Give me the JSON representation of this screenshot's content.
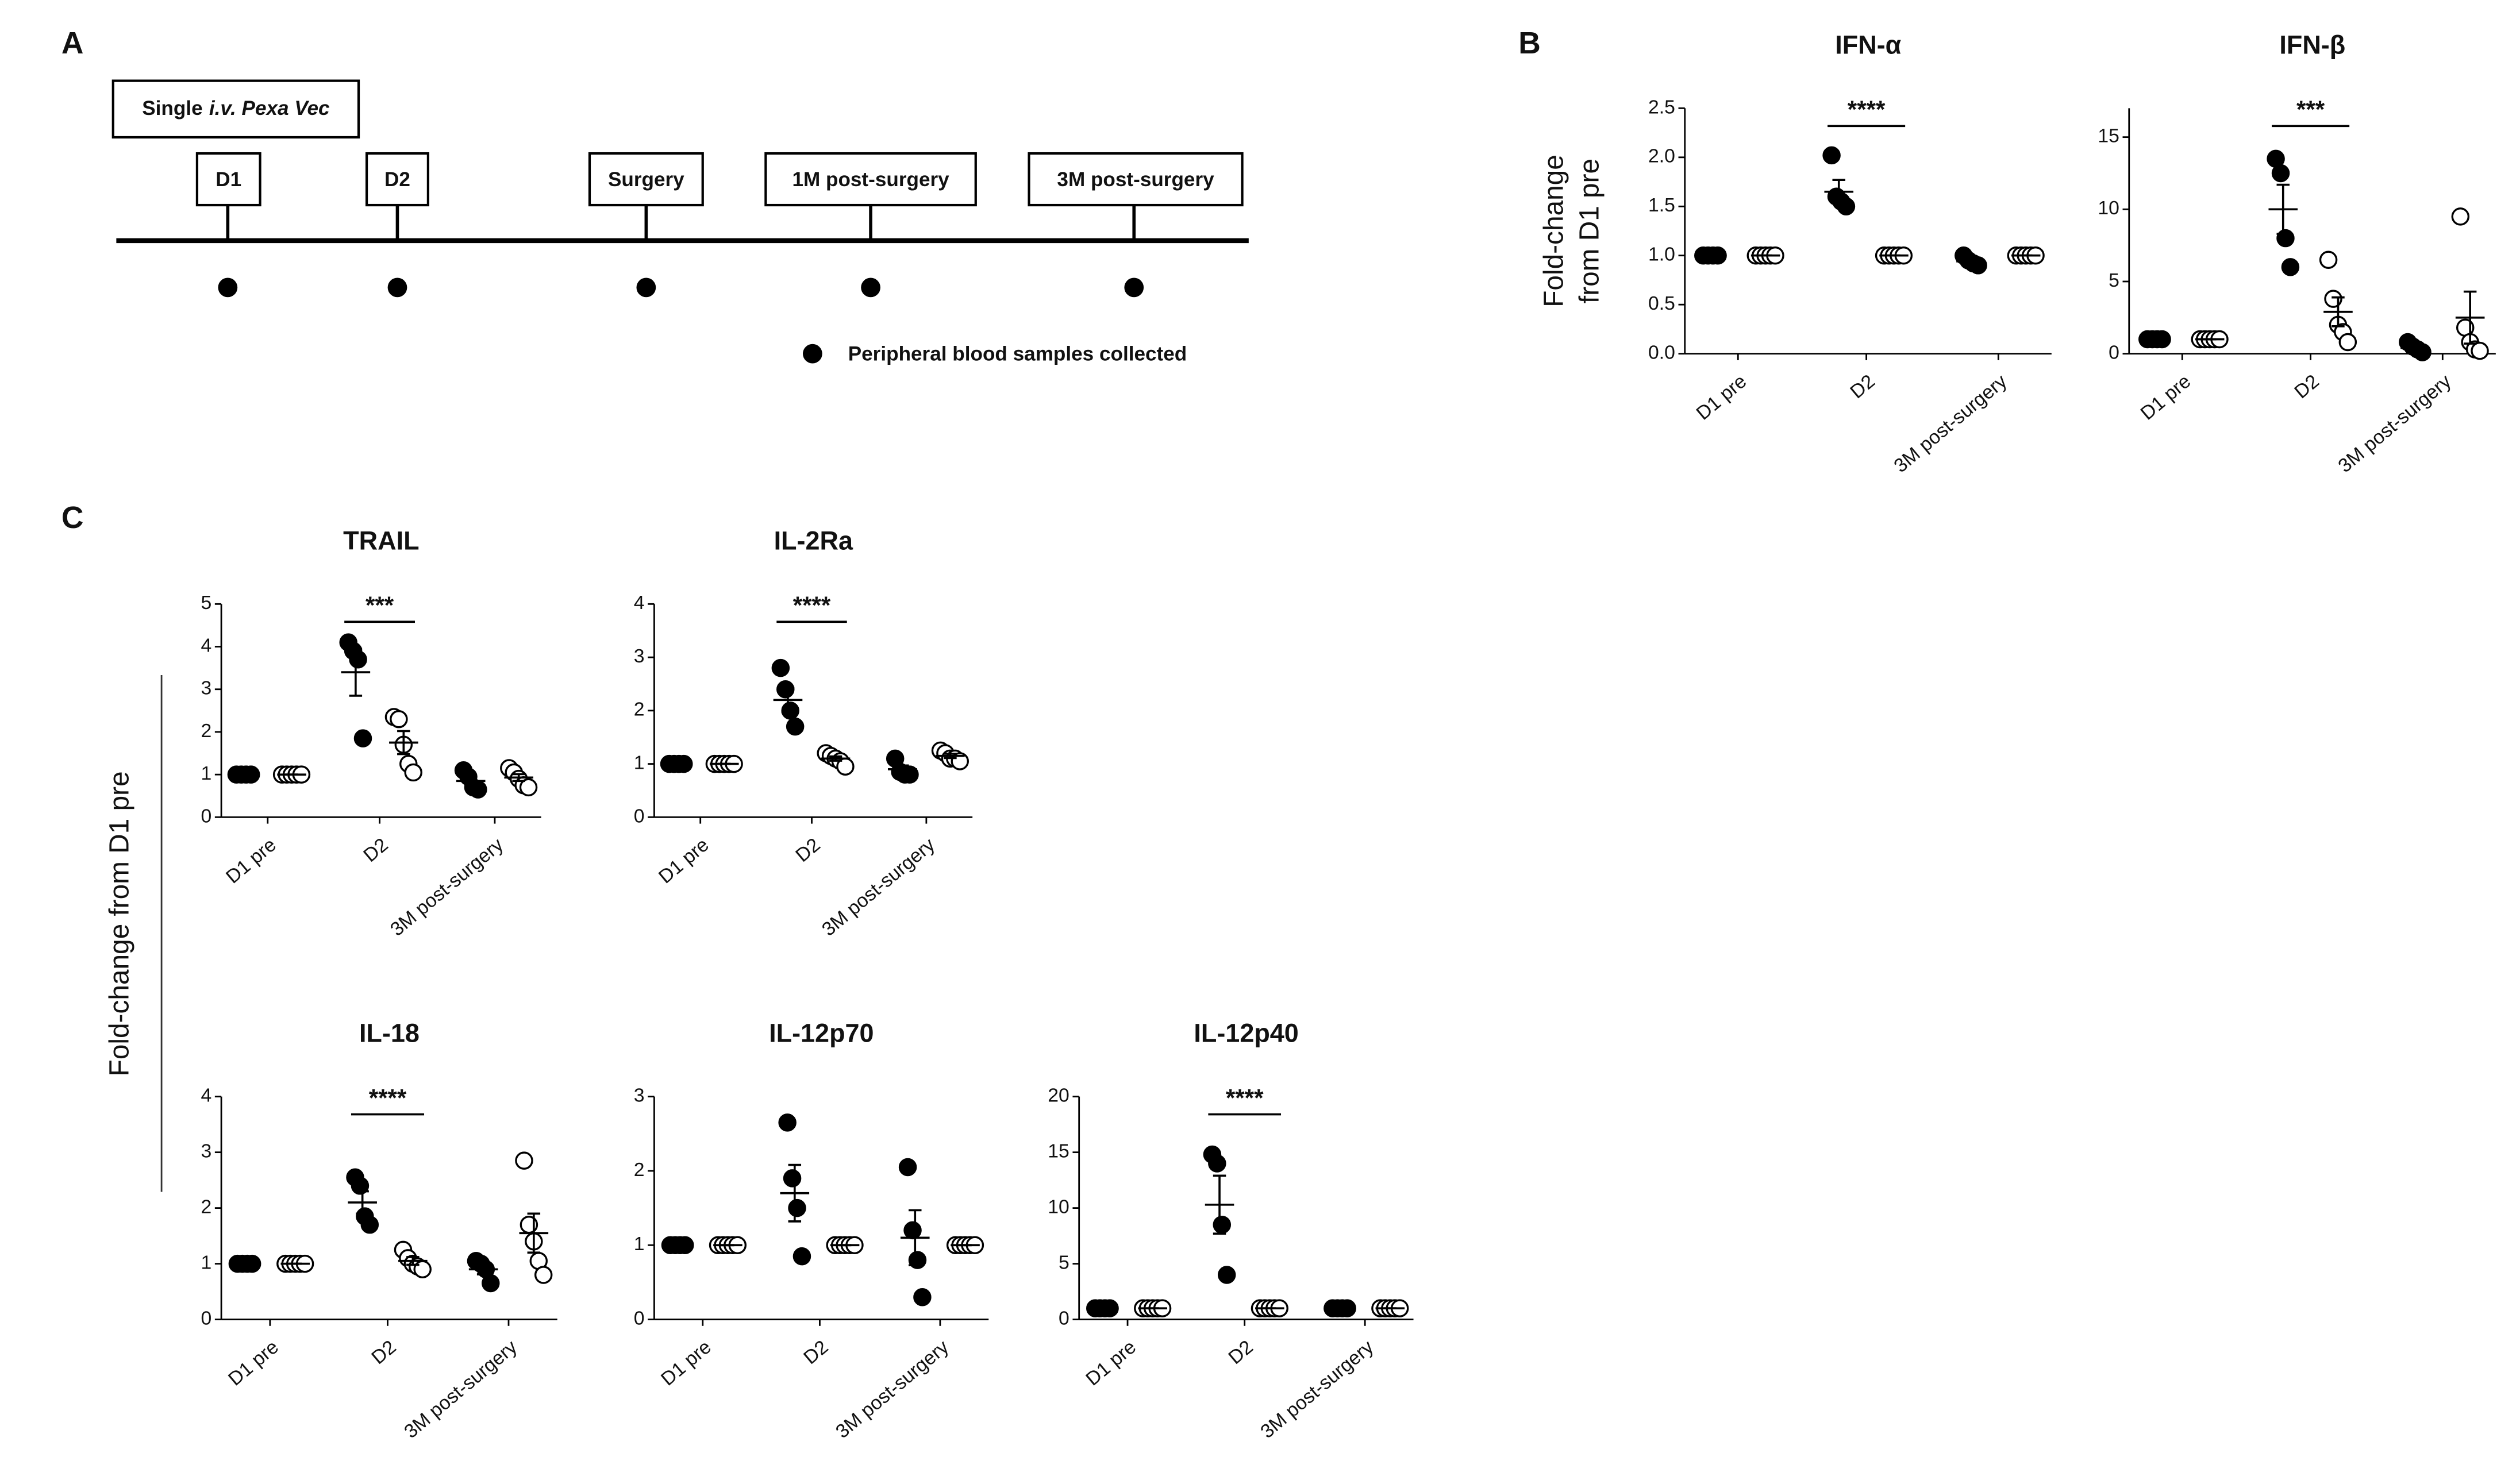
{
  "panels": [
    "A",
    "B",
    "C"
  ],
  "timeline": {
    "intro": [
      "Single",
      "i.v. Pexa Vec"
    ],
    "events": [
      "D1",
      "D2",
      "Surgery",
      "1M post-surgery",
      "3M post-surgery"
    ],
    "legend": "Peripheral blood samples collected"
  },
  "shared_ylabel": "Fold-change from D1 pre",
  "chart_data": [
    {
      "type": "dot",
      "title": "IFN-α",
      "ylabel": [
        "Fold-change",
        "from D1 pre"
      ],
      "categories": [
        "D1 pre",
        "D2",
        "3M post-surgery"
      ],
      "ylim": [
        0,
        2.5
      ],
      "yticks": [
        {
          "value": 0,
          "label": "0.0"
        },
        0.5,
        {
          "value": 1,
          "label": "1.0"
        },
        1.5,
        {
          "value": 2,
          "label": "2.0"
        },
        2.5
      ],
      "significance": {
        "label": "****",
        "category": 1
      },
      "series": [
        {
          "marker": "filled",
          "color": "#000000",
          "values": [
            [
              1,
              1,
              1,
              1
            ],
            [
              2.02,
              1.6,
              1.55,
              1.5
            ],
            [
              1,
              0.95,
              0.92,
              0.9
            ]
          ],
          "mean": [
            1,
            1.65,
            0.94
          ],
          "sem": [
            0,
            0.12,
            0.02
          ]
        },
        {
          "marker": "open",
          "color": "#000000",
          "values": [
            [
              1,
              1,
              1,
              1,
              1
            ],
            [
              1,
              1,
              1,
              1,
              1
            ],
            [
              1,
              1,
              1,
              1,
              1
            ]
          ],
          "mean": [
            1,
            1,
            1
          ],
          "sem": [
            0,
            0,
            0
          ]
        }
      ]
    },
    {
      "type": "dot",
      "title": "IFN-β",
      "categories": [
        "D1 pre",
        "D2",
        "3M post-surgery"
      ],
      "ylim": [
        0,
        17
      ],
      "yticks": [
        0,
        5,
        10,
        15
      ],
      "significance": {
        "label": "***",
        "category": 1
      },
      "series": [
        {
          "marker": "filled",
          "color": "#000000",
          "values": [
            [
              1,
              1,
              1,
              1
            ],
            [
              13.5,
              12.5,
              8,
              6
            ],
            [
              0.8,
              0.5,
              0.3,
              0.1
            ]
          ],
          "mean": [
            1,
            10,
            0.4
          ],
          "sem": [
            0,
            1.7,
            0.15
          ]
        },
        {
          "marker": "open",
          "color": "#000000",
          "values": [
            [
              1,
              1,
              1,
              1,
              1
            ],
            [
              6.5,
              3.8,
              2,
              1.5,
              0.8
            ],
            [
              9.5,
              1.8,
              0.8,
              0.3,
              0.2
            ]
          ],
          "mean": [
            1,
            2.9,
            2.5
          ],
          "sem": [
            0,
            1,
            1.8
          ]
        }
      ]
    },
    {
      "type": "dot",
      "title": "TRAIL",
      "categories": [
        "D1 pre",
        "D2",
        "3M post-surgery"
      ],
      "ylim": [
        0,
        5
      ],
      "yticks": [
        0,
        1,
        2,
        3,
        4,
        5
      ],
      "significance": {
        "label": "***",
        "category": 1
      },
      "series": [
        {
          "marker": "filled",
          "color": "#000000",
          "values": [
            [
              1,
              1,
              1,
              1
            ],
            [
              4.1,
              3.9,
              3.7,
              1.85
            ],
            [
              1.1,
              0.95,
              0.7,
              0.65
            ]
          ],
          "mean": [
            1,
            3.4,
            0.85
          ],
          "sem": [
            0,
            0.55,
            0.1
          ]
        },
        {
          "marker": "open",
          "color": "#000000",
          "values": [
            [
              1,
              1,
              1,
              1,
              1
            ],
            [
              2.35,
              2.3,
              1.7,
              1.25,
              1.05
            ],
            [
              1.15,
              1.05,
              0.9,
              0.75,
              0.7
            ]
          ],
          "mean": [
            1,
            1.75,
            0.93
          ],
          "sem": [
            0,
            0.27,
            0.08
          ]
        }
      ]
    },
    {
      "type": "dot",
      "title": "IL-2Ra",
      "categories": [
        "D1 pre",
        "D2",
        "3M post-surgery"
      ],
      "ylim": [
        0,
        4
      ],
      "yticks": [
        0,
        1,
        2,
        3,
        4
      ],
      "significance": {
        "label": "****",
        "category": 1
      },
      "series": [
        {
          "marker": "filled",
          "color": "#000000",
          "values": [
            [
              1,
              1,
              1,
              1
            ],
            [
              2.8,
              2.4,
              2,
              1.7
            ],
            [
              1.1,
              0.85,
              0.8,
              0.8
            ]
          ],
          "mean": [
            1,
            2.2,
            0.9
          ],
          "sem": [
            0,
            0.23,
            0.07
          ]
        },
        {
          "marker": "open",
          "color": "#000000",
          "values": [
            [
              1,
              1,
              1,
              1,
              1
            ],
            [
              1.2,
              1.15,
              1.1,
              1.05,
              0.95
            ],
            [
              1.25,
              1.2,
              1.1,
              1.1,
              1.05
            ]
          ],
          "mean": [
            1,
            1.1,
            1.15
          ],
          "sem": [
            0,
            0.04,
            0.04
          ]
        }
      ]
    },
    {
      "type": "dot",
      "title": "IL-18",
      "categories": [
        "D1 pre",
        "D2",
        "3M post-surgery"
      ],
      "ylim": [
        0,
        4
      ],
      "yticks": [
        0,
        1,
        2,
        3,
        4
      ],
      "significance": {
        "label": "****",
        "category": 1
      },
      "series": [
        {
          "marker": "filled",
          "color": "#000000",
          "values": [
            [
              1,
              1,
              1,
              1
            ],
            [
              2.55,
              2.4,
              1.85,
              1.7
            ],
            [
              1.05,
              1,
              0.9,
              0.65
            ]
          ],
          "mean": [
            1,
            2.1,
            0.9
          ],
          "sem": [
            0,
            0.2,
            0.09
          ]
        },
        {
          "marker": "open",
          "color": "#000000",
          "values": [
            [
              1,
              1,
              1,
              1,
              1
            ],
            [
              1.25,
              1.1,
              1,
              0.95,
              0.9
            ],
            [
              2.85,
              1.7,
              1.4,
              1.05,
              0.8
            ]
          ],
          "mean": [
            1,
            1.05,
            1.55
          ],
          "sem": [
            0,
            0.07,
            0.35
          ]
        }
      ]
    },
    {
      "type": "dot",
      "title": "IL-12p70",
      "categories": [
        "D1 pre",
        "D2",
        "3M post-surgery"
      ],
      "ylim": [
        0,
        3
      ],
      "yticks": [
        0,
        1,
        2,
        3
      ],
      "series": [
        {
          "marker": "filled",
          "color": "#000000",
          "values": [
            [
              1,
              1,
              1,
              1
            ],
            [
              2.65,
              1.9,
              1.5,
              0.85
            ],
            [
              2.05,
              1.2,
              0.8,
              0.3
            ]
          ],
          "mean": [
            1,
            1.7,
            1.1
          ],
          "sem": [
            0,
            0.38,
            0.37
          ]
        },
        {
          "marker": "open",
          "color": "#000000",
          "values": [
            [
              1,
              1,
              1,
              1,
              1
            ],
            [
              1,
              1,
              1,
              1,
              1
            ],
            [
              1,
              1,
              1,
              1,
              1
            ]
          ],
          "mean": [
            1,
            1,
            1
          ],
          "sem": [
            0,
            0,
            0
          ]
        }
      ]
    },
    {
      "type": "dot",
      "title": "IL-12p40",
      "categories": [
        "D1 pre",
        "D2",
        "3M post-surgery"
      ],
      "ylim": [
        0,
        20
      ],
      "yticks": [
        0,
        5,
        10,
        15,
        20
      ],
      "significance": {
        "label": "****",
        "category": 1
      },
      "series": [
        {
          "marker": "filled",
          "color": "#000000",
          "values": [
            [
              1,
              1,
              1,
              1
            ],
            [
              14.8,
              14,
              8.5,
              4
            ],
            [
              1,
              1,
              1,
              1
            ]
          ],
          "mean": [
            1,
            10.3,
            1
          ],
          "sem": [
            0,
            2.6,
            0
          ]
        },
        {
          "marker": "open",
          "color": "#000000",
          "values": [
            [
              1,
              1,
              1,
              1,
              1
            ],
            [
              1,
              1,
              1,
              1,
              1
            ],
            [
              1,
              1,
              1,
              1,
              1
            ]
          ],
          "mean": [
            1,
            1,
            1
          ],
          "sem": [
            0,
            0,
            0
          ]
        }
      ]
    }
  ]
}
